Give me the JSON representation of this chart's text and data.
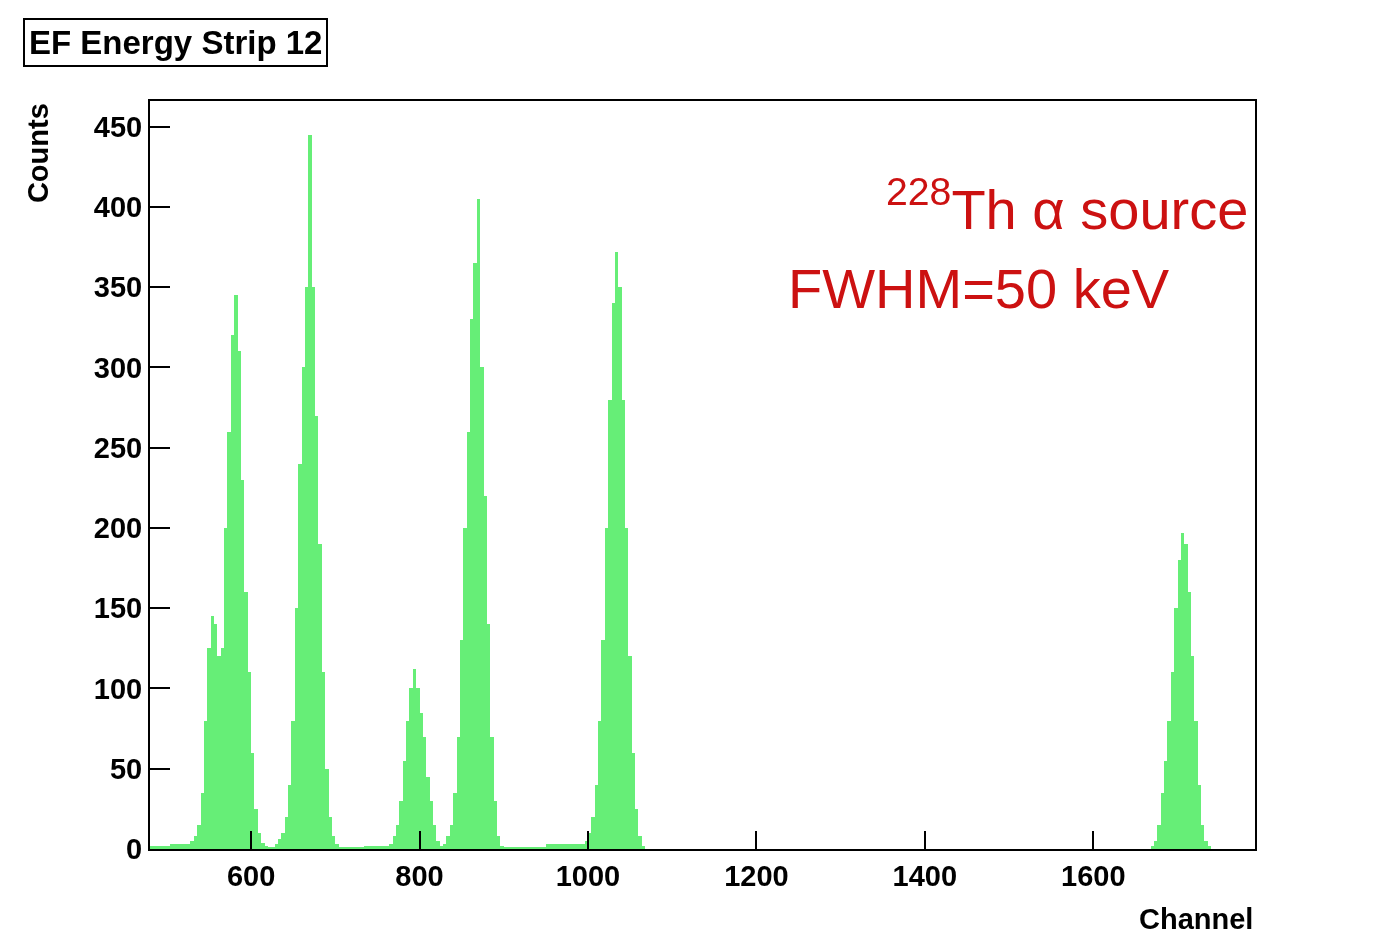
{
  "chart_data": {
    "type": "histogram",
    "title": "EF Energy Strip 12",
    "xlabel": "Channel",
    "ylabel": "Counts",
    "annotations": [
      "$^{228}$Th α source",
      "FWHM=50 keV"
    ],
    "color": "#66ee77",
    "bins": [
      480,
      504,
      528,
      532,
      536,
      540,
      544,
      548,
      552,
      556,
      560,
      564,
      568,
      572,
      576,
      580,
      584,
      588,
      592,
      596,
      600,
      604,
      608,
      612,
      616,
      620,
      628,
      632,
      636,
      640,
      644,
      648,
      652,
      656,
      660,
      664,
      668,
      672,
      676,
      680,
      684,
      688,
      692,
      696,
      700,
      704,
      734,
      764,
      768,
      772,
      776,
      780,
      784,
      788,
      792,
      796,
      800,
      804,
      808,
      812,
      816,
      820,
      824,
      828,
      832,
      836,
      840,
      844,
      848,
      852,
      856,
      860,
      864,
      868,
      872,
      876,
      880,
      884,
      888,
      892,
      896,
      900,
      950,
      996,
      1000,
      1004,
      1008,
      1012,
      1016,
      1020,
      1024,
      1028,
      1032,
      1036,
      1040,
      1044,
      1048,
      1052,
      1056,
      1060,
      1064,
      1068,
      1668,
      1672,
      1676,
      1680,
      1684,
      1688,
      1692,
      1696,
      1700,
      1704,
      1708,
      1712,
      1716,
      1720,
      1724,
      1728,
      1732,
      1736,
      1740
    ],
    "values": [
      2,
      3,
      5,
      8,
      15,
      35,
      80,
      125,
      145,
      140,
      120,
      125,
      200,
      260,
      320,
      345,
      310,
      230,
      160,
      110,
      60,
      25,
      10,
      4,
      2,
      1,
      3,
      6,
      10,
      20,
      40,
      80,
      150,
      240,
      300,
      350,
      445,
      350,
      270,
      190,
      110,
      50,
      20,
      8,
      3,
      1,
      2,
      3,
      8,
      15,
      30,
      55,
      80,
      100,
      112,
      100,
      85,
      70,
      45,
      30,
      15,
      5,
      2,
      3,
      8,
      15,
      35,
      70,
      130,
      200,
      260,
      330,
      365,
      405,
      300,
      220,
      140,
      70,
      30,
      8,
      2,
      1,
      3,
      5,
      10,
      20,
      40,
      80,
      130,
      200,
      280,
      340,
      372,
      350,
      280,
      200,
      120,
      60,
      25,
      8,
      2,
      0,
      2,
      5,
      15,
      35,
      55,
      80,
      110,
      150,
      180,
      197,
      190,
      160,
      120,
      80,
      40,
      15,
      5,
      2
    ],
    "xlim": [
      480,
      1792
    ],
    "ylim": [
      0,
      466
    ],
    "xticks": [
      600,
      800,
      1000,
      1200,
      1400,
      1600
    ],
    "yticks": [
      0,
      50,
      100,
      150,
      200,
      250,
      300,
      350,
      400,
      450
    ],
    "grid": false,
    "legend": false
  }
}
